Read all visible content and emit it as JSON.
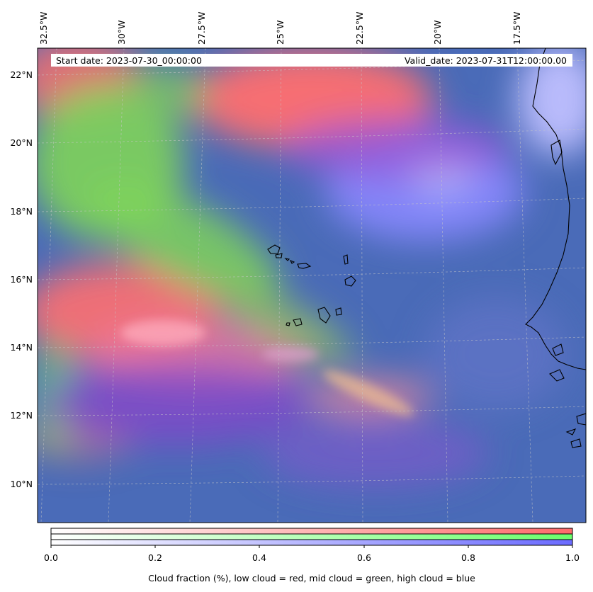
{
  "map": {
    "start_date_text": "Start date: 2023-07-30_00:00:00",
    "valid_date_text": "Valid_date: 2023-07-31T12:00:00.00",
    "lon_labels": [
      "32.5°W",
      "30°W",
      "27.5°W",
      "25°W",
      "22.5°W",
      "20°W",
      "17.5°W"
    ],
    "lat_labels": [
      "22°N",
      "20°N",
      "18°N",
      "16°N",
      "14°N",
      "12°N",
      "10°N"
    ],
    "background_color": "#4a6bb8"
  },
  "colorbar": {
    "ticks": [
      "0.0",
      "0.2",
      "0.4",
      "0.6",
      "0.8",
      "1.0"
    ],
    "rows": [
      {
        "name": "low cloud",
        "color": "#ff6b6b"
      },
      {
        "name": "mid cloud",
        "color": "#6bff6b"
      },
      {
        "name": "high cloud",
        "color": "#6b6bff"
      }
    ],
    "label": "Cloud fraction (%), low cloud = red, mid cloud = green, high cloud = blue"
  }
}
